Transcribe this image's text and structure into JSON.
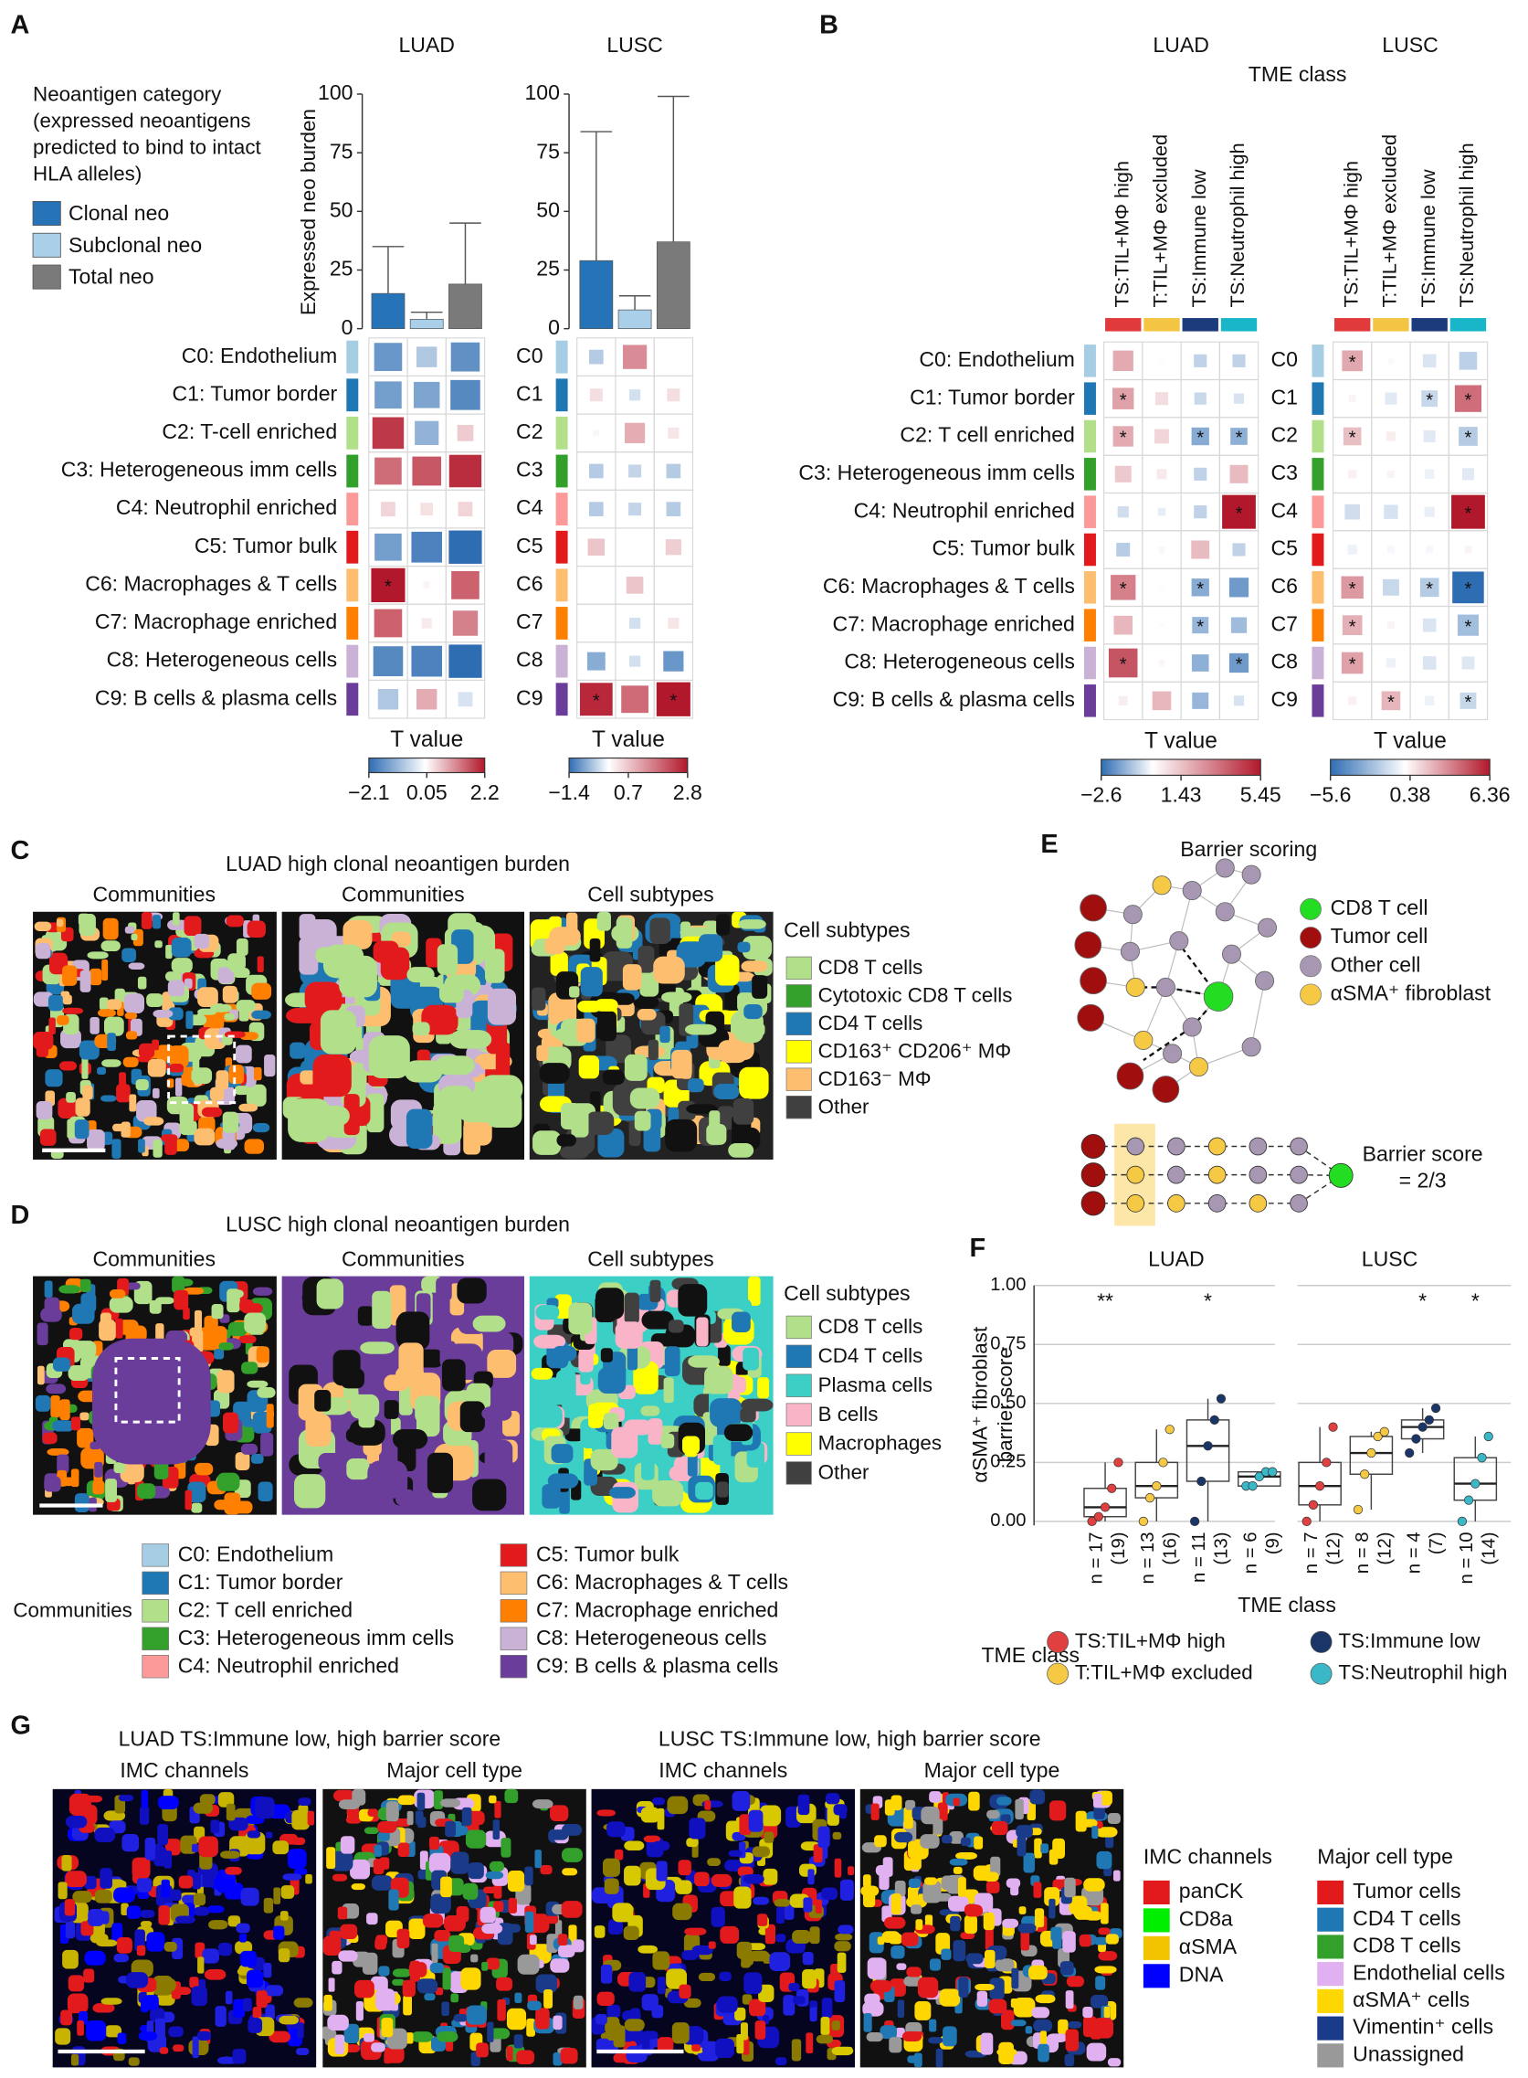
{
  "community_colors": [
    "#a6cde3",
    "#1f78b4",
    "#b2df8a",
    "#33a02c",
    "#fb9a99",
    "#e31a1c",
    "#fdbf6f",
    "#ff7f00",
    "#cab2d6",
    "#6a3d9a"
  ],
  "panel_a": {
    "label": "A",
    "legend_title": [
      "Neoantigen category",
      "(expressed neoantigens",
      "predicted to bind to intact",
      "HLA alleles)"
    ],
    "legend": [
      {
        "name": "Clonal neo",
        "color": "#2673b8"
      },
      {
        "name": "Subclonal neo",
        "color": "#a9d0e8"
      },
      {
        "name": "Total neo",
        "color": "#7a7a7a"
      }
    ],
    "bar_ylabel": "Expressed neo burden",
    "ylim": [
      0,
      100
    ],
    "yticks": [
      0,
      25,
      50,
      75,
      100
    ],
    "cohorts": [
      {
        "name": "LUAD",
        "bars": {
          "values": [
            15,
            4,
            19
          ],
          "errors": [
            20,
            3,
            26
          ]
        },
        "heatmap": {
          "rows": [
            "C0: Endothelium",
            "C1: Tumor border",
            "C2: T-cell enriched",
            "C3: Heterogeneous imm cells",
            "C4: Neutrophil enriched",
            "C5: Tumor bulk",
            "C6: Macrophages & T cells",
            "C7: Macrophage enriched",
            "C8: Heterogeneous cells",
            "C9: B cells & plasma cells"
          ],
          "values": [
            [
              -1.5,
              -0.8,
              -1.6
            ],
            [
              -1.4,
              -1.3,
              -1.7
            ],
            [
              1.9,
              -1.1,
              0.5
            ],
            [
              1.4,
              1.6,
              2.0
            ],
            [
              0.4,
              0.3,
              0.4
            ],
            [
              -1.4,
              -1.8,
              -2.1
            ],
            [
              2.2,
              0.1,
              1.5
            ],
            [
              1.5,
              0.2,
              1.2
            ],
            [
              -1.7,
              -1.8,
              -2.1
            ],
            [
              -0.8,
              0.8,
              -0.4
            ]
          ],
          "stars": [
            [
              null,
              null,
              null
            ],
            [
              null,
              null,
              null
            ],
            [
              null,
              null,
              null
            ],
            [
              null,
              null,
              null
            ],
            [
              null,
              null,
              null
            ],
            [
              null,
              null,
              null
            ],
            [
              "*",
              null,
              null
            ],
            [
              null,
              null,
              null
            ],
            [
              null,
              null,
              null
            ],
            [
              null,
              null,
              null
            ]
          ]
        },
        "colorbar": {
          "title": "T value",
          "lim": [
            -2.1,
            2.2
          ],
          "ticks": [
            {
              "value": -2.1,
              "label": "−2.1"
            },
            0.05,
            2.2
          ]
        }
      },
      {
        "name": "LUSC",
        "bars": {
          "values": [
            29,
            8,
            37
          ],
          "errors": [
            55,
            6,
            62
          ]
        },
        "heatmap": {
          "rows": [
            "C0",
            "C1",
            "C2",
            "C3",
            "C4",
            "C5",
            "C6",
            "C7",
            "C8",
            "C9"
          ],
          "values": [
            [
              -0.5,
              1.4,
              0.0
            ],
            [
              0.4,
              -0.3,
              0.4
            ],
            [
              0.1,
              1.0,
              0.3
            ],
            [
              -0.5,
              -0.4,
              -0.5
            ],
            [
              -0.5,
              -0.4,
              -0.5
            ],
            [
              0.7,
              0.0,
              0.6
            ],
            [
              0.0,
              0.7,
              0.0
            ],
            [
              0.0,
              -0.3,
              0.3
            ],
            [
              -0.8,
              -0.3,
              -1.0
            ],
            [
              2.6,
              1.8,
              2.8
            ]
          ],
          "stars": [
            [
              null,
              null,
              null
            ],
            [
              null,
              null,
              null
            ],
            [
              null,
              null,
              null
            ],
            [
              null,
              null,
              null
            ],
            [
              null,
              null,
              null
            ],
            [
              null,
              null,
              null
            ],
            [
              null,
              null,
              null
            ],
            [
              null,
              null,
              null
            ],
            [
              null,
              null,
              null
            ],
            [
              "*",
              null,
              "*"
            ]
          ]
        },
        "colorbar": {
          "title": "T value",
          "lim": [
            -1.4,
            2.8
          ],
          "ticks": [
            {
              "value": -1.4,
              "label": "−1.4"
            },
            0.7,
            2.8
          ]
        }
      }
    ]
  },
  "panel_b": {
    "label": "B",
    "group_title": "TME class",
    "columns": [
      {
        "name": "TS:TIL+MΦ high",
        "color": "#e03a3a"
      },
      {
        "name": "T:TIL+MΦ excluded",
        "color": "#f4c542"
      },
      {
        "name": "TS:Immune low",
        "color": "#1c3b7a"
      },
      {
        "name": "TS:Neutrophil high",
        "color": "#19b5c8"
      }
    ],
    "cohorts": [
      {
        "name": "LUAD",
        "heatmap": {
          "rows": [
            "C0: Endothelium",
            "C1: Tumor border",
            "C2: T cell enriched",
            "C3: Heterogeneous imm cells",
            "C4: Neutrophil enriched",
            "C5: Tumor bulk",
            "C6: Macrophages & T cells",
            "C7: Macrophage enriched",
            "C8: Heterogeneous cells",
            "C9: B cells & plasma cells"
          ],
          "values": [
            [
              2.0,
              0.1,
              -0.8,
              -0.8
            ],
            [
              2.2,
              0.8,
              -0.7,
              -0.5
            ],
            [
              2.0,
              1.0,
              -1.5,
              -1.4
            ],
            [
              1.3,
              0.5,
              -0.8,
              1.6
            ],
            [
              -0.6,
              -0.3,
              -0.8,
              5.45
            ],
            [
              -0.9,
              0.2,
              1.6,
              -0.8
            ],
            [
              3.0,
              0.1,
              -1.5,
              -1.8
            ],
            [
              1.7,
              0.1,
              -1.3,
              -1.2
            ],
            [
              4.0,
              0.2,
              -1.4,
              -1.8
            ],
            [
              0.4,
              1.7,
              -1.3,
              -0.5
            ]
          ],
          "stars": [
            [
              null,
              null,
              null,
              null
            ],
            [
              "*",
              null,
              null,
              null
            ],
            [
              "*",
              null,
              "*",
              "*"
            ],
            [
              null,
              null,
              null,
              null
            ],
            [
              null,
              null,
              null,
              "*"
            ],
            [
              null,
              null,
              null,
              null
            ],
            [
              "*",
              null,
              "*",
              null
            ],
            [
              null,
              null,
              "*",
              null
            ],
            [
              "*",
              null,
              null,
              "*"
            ],
            [
              null,
              null,
              null,
              null
            ]
          ]
        },
        "colorbar": {
          "title": "T value",
          "lim": [
            -2.6,
            5.45
          ],
          "ticks": [
            {
              "value": -2.6,
              "label": "−2.6"
            },
            1.43,
            5.45
          ]
        }
      },
      {
        "name": "LUSC",
        "heatmap": {
          "rows": [
            "C0",
            "C1",
            "C2",
            "C3",
            "C4",
            "C5",
            "C6",
            "C7",
            "C8",
            "C9"
          ],
          "values": [
            [
              2.4,
              -0.2,
              -1.0,
              -1.8
            ],
            [
              0.3,
              -0.8,
              -1.5,
              4.0
            ],
            [
              1.8,
              0.5,
              -0.8,
              -2.0
            ],
            [
              0.4,
              0.3,
              -0.5,
              -0.8
            ],
            [
              -1.3,
              -1.1,
              -0.6,
              6.36
            ],
            [
              -0.5,
              -0.3,
              -0.3,
              0.3
            ],
            [
              2.8,
              -1.5,
              -2.0,
              -5.6
            ],
            [
              2.2,
              0.3,
              -1.0,
              -2.5
            ],
            [
              2.6,
              -0.5,
              -1.0,
              -0.9
            ],
            [
              0.4,
              2.0,
              -0.5,
              -1.5
            ]
          ],
          "stars": [
            [
              "*",
              null,
              null,
              null
            ],
            [
              null,
              null,
              "*",
              "*"
            ],
            [
              "*",
              null,
              null,
              "*"
            ],
            [
              null,
              null,
              null,
              null
            ],
            [
              null,
              null,
              null,
              "*"
            ],
            [
              null,
              null,
              null,
              null
            ],
            [
              "*",
              null,
              "*",
              "*"
            ],
            [
              "*",
              null,
              null,
              "*"
            ],
            [
              "*",
              null,
              null,
              null
            ],
            [
              null,
              "*",
              null,
              "*"
            ]
          ]
        },
        "colorbar": {
          "title": "T value",
          "lim": [
            -5.6,
            6.36
          ],
          "ticks": [
            {
              "value": -5.6,
              "label": "−5.6"
            },
            0.38,
            6.36
          ]
        }
      }
    ]
  },
  "panel_c": {
    "label": "C",
    "title": "LUAD high clonal neoantigen burden",
    "captions": [
      "Communities",
      "Communities",
      "Cell subtypes"
    ],
    "legend_title": "Cell subtypes",
    "legend": [
      {
        "name": "CD8 T cells",
        "color": "#b2df8a"
      },
      {
        "name": "Cytotoxic CD8 T cells",
        "color": "#33a02c"
      },
      {
        "name": "CD4 T cells",
        "color": "#1f78b4"
      },
      {
        "name": "CD163⁺ CD206⁺ MΦ",
        "color": "#ffff00"
      },
      {
        "name": "CD163⁻ MΦ",
        "color": "#fdbf6f"
      },
      {
        "name": "Other",
        "color": "#404040"
      }
    ]
  },
  "panel_d": {
    "label": "D",
    "title": "LUSC high clonal neoantigen burden",
    "captions": [
      "Communities",
      "Communities",
      "Cell subtypes"
    ],
    "legend_title": "Cell subtypes",
    "legend": [
      {
        "name": "CD8 T cells",
        "color": "#b2df8a"
      },
      {
        "name": "CD4 T cells",
        "color": "#1f78b4"
      },
      {
        "name": "Plasma cells",
        "color": "#3ccfc6"
      },
      {
        "name": "B cells",
        "color": "#f9b4c8"
      },
      {
        "name": "Macrophages",
        "color": "#ffff00"
      },
      {
        "name": "Other",
        "color": "#404040"
      }
    ],
    "communities_title": "Communities",
    "communities": [
      "C0: Endothelium",
      "C1: Tumor border",
      "C2: T cell enriched",
      "C3: Heterogeneous imm cells",
      "C4: Neutrophil enriched",
      "C5: Tumor bulk",
      "C6: Macrophages & T cells",
      "C7: Macrophage enriched",
      "C8: Heterogeneous cells",
      "C9: B cells & plasma cells"
    ]
  },
  "panel_e": {
    "label": "E",
    "title": "Barrier scoring",
    "legend": [
      {
        "name": "CD8 T cell",
        "color": "#22dd22"
      },
      {
        "name": "Tumor cell",
        "color": "#a00e0e"
      },
      {
        "name": "Other cell",
        "color": "#a897b3"
      },
      {
        "name": "αSMA⁺ fibroblast",
        "color": "#f6c945"
      }
    ],
    "score_lines": [
      "Barrier score",
      "= 2/3"
    ]
  },
  "panel_f": {
    "label": "F",
    "ylabel": [
      "αSMA⁺ fibroblast",
      "barrier score"
    ],
    "xlabel": "TME class",
    "ylim": [
      0,
      1
    ],
    "yticks": [
      {
        "value": 0,
        "label": "0.00"
      },
      {
        "value": 0.25,
        "label": "0.25"
      },
      {
        "value": 0.5,
        "label": "0.50"
      },
      {
        "value": 0.75,
        "label": "0.75"
      },
      {
        "value": 1,
        "label": "1.00"
      }
    ],
    "cohorts": [
      {
        "name": "LUAD",
        "boxes": [
          {
            "q1": 0.02,
            "median": 0.06,
            "q3": 0.14,
            "low": 0,
            "high": 0.25
          },
          {
            "q1": 0.1,
            "median": 0.15,
            "q3": 0.25,
            "low": 0,
            "high": 0.39
          },
          {
            "q1": 0.17,
            "median": 0.32,
            "q3": 0.43,
            "low": 0,
            "high": 0.52
          },
          {
            "q1": 0.15,
            "median": 0.19,
            "q3": 0.21,
            "low": 0.15,
            "high": 0.21
          }
        ],
        "n_labels": [
          [
            "n = 17",
            "(19)"
          ],
          [
            "n = 13",
            "(16)"
          ],
          [
            "n = 11",
            "(13)"
          ],
          [
            "n = 6",
            "(9)"
          ]
        ],
        "stars": [
          "**",
          null,
          "*",
          null
        ]
      },
      {
        "name": "LUSC",
        "boxes": [
          {
            "q1": 0.07,
            "median": 0.15,
            "q3": 0.25,
            "low": 0,
            "high": 0.4
          },
          {
            "q1": 0.2,
            "median": 0.29,
            "q3": 0.36,
            "low": 0.05,
            "high": 0.38
          },
          {
            "q1": 0.35,
            "median": 0.4,
            "q3": 0.43,
            "low": 0.29,
            "high": 0.48
          },
          {
            "q1": 0.09,
            "median": 0.16,
            "q3": 0.27,
            "low": 0,
            "high": 0.36
          }
        ],
        "n_labels": [
          [
            "n = 7",
            "(12)"
          ],
          [
            "n = 8",
            "(12)"
          ],
          [
            "n = 4",
            "(7)"
          ],
          [
            "n = 10",
            "(14)"
          ]
        ],
        "stars": [
          null,
          null,
          "*",
          "*"
        ]
      }
    ],
    "legend_title": "TME class",
    "legend": [
      {
        "name": "TS:TIL+MΦ high",
        "color": "#e04040"
      },
      {
        "name": "T:TIL+MΦ excluded",
        "color": "#f6c945"
      },
      {
        "name": "TS:Immune low",
        "color": "#1a3668"
      },
      {
        "name": "TS:Neutrophil high",
        "color": "#3ab8c8"
      }
    ]
  },
  "panel_g": {
    "label": "G",
    "titles": [
      "LUAD TS:Immune low, high barrier score",
      "LUSC TS:Immune low, high barrier score"
    ],
    "captions": [
      "IMC channels",
      "Major cell type",
      "IMC channels",
      "Major cell type"
    ],
    "channels_title": "IMC channels",
    "channels": [
      {
        "name": "panCK",
        "color": "#e31a1c"
      },
      {
        "name": "CD8a",
        "color": "#00ee00"
      },
      {
        "name": "αSMA",
        "color": "#f2c400"
      },
      {
        "name": "DNA",
        "color": "#0000ff"
      }
    ],
    "celltypes_title": "Major cell type",
    "celltypes": [
      {
        "name": "Tumor cells",
        "color": "#e31a1c"
      },
      {
        "name": "CD4 T cells",
        "color": "#1f78b4"
      },
      {
        "name": "CD8 T cells",
        "color": "#33a02c"
      },
      {
        "name": "Endothelial cells",
        "color": "#e0b0f0"
      },
      {
        "name": "αSMA⁺ cells",
        "color": "#ffd700"
      },
      {
        "name": "Vimentin⁺ cells",
        "color": "#1a3a8a"
      },
      {
        "name": "Unassigned",
        "color": "#999999"
      }
    ]
  }
}
